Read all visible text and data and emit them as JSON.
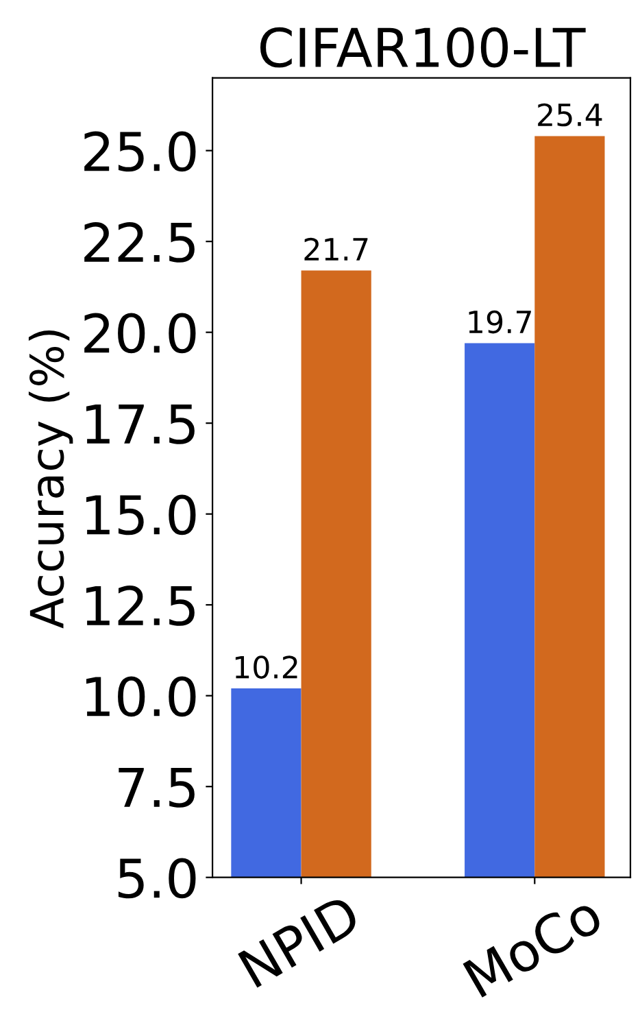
{
  "chart_data": {
    "type": "bar",
    "title": "CIFAR100-LT",
    "ylabel": "Accuracy (%)",
    "categories": [
      "NPID",
      "MoCo"
    ],
    "series": [
      {
        "color": "#4169e1",
        "values": [
          10.2,
          19.7
        ]
      },
      {
        "color": "#d2691e",
        "values": [
          21.7,
          25.4
        ]
      }
    ],
    "ylim": [
      5,
      27
    ],
    "yticks": [
      {
        "value": 5,
        "label": "5.0"
      },
      {
        "value": 7.5,
        "label": "7.5"
      },
      {
        "value": 10,
        "label": "10.0"
      },
      {
        "value": 12.5,
        "label": "12.5"
      },
      {
        "value": 15,
        "label": "15.0"
      },
      {
        "value": 17.5,
        "label": "17.5"
      },
      {
        "value": 20,
        "label": "20.0"
      },
      {
        "value": 22.5,
        "label": "22.5"
      },
      {
        "value": 25,
        "label": "25.0"
      }
    ],
    "data_labels": true,
    "grid": false,
    "legend": false
  }
}
